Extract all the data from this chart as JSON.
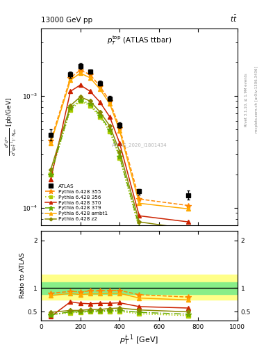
{
  "title_top": "13000 GeV pp",
  "title_right": "tt",
  "plot_title": "$p_T^{\\mathrm{top}}$ (ATLAS ttbar)",
  "atlas_label": "ATLAS_2020_I1801434",
  "right_label1": "Rivet 3.1.10, ≥ 1.9M events",
  "right_label2": "mcplots.cern.ch [arXiv:1306.3436]",
  "xlabel": "$p_T^{t,1}$ [GeV]",
  "ylabel_line1": "d",
  "ratio_ylabel": "Ratio to ATLAS",
  "xpts": [
    50,
    150,
    200,
    250,
    300,
    350,
    400,
    500,
    750
  ],
  "atlas_y": [
    0.00045,
    0.00155,
    0.00185,
    0.00165,
    0.0013,
    0.00095,
    0.00055,
    0.00014,
    0.00013
  ],
  "atlas_yerr": [
    5e-05,
    0.0001,
    0.0001,
    8e-05,
    7e-05,
    5e-05,
    3e-05,
    8e-06,
    1.2e-05
  ],
  "series": [
    {
      "label": "Pythia 6.428 355",
      "color": "#ff8800",
      "linestyle": "--",
      "marker": "*",
      "markersize": 6,
      "y": [
        0.0004,
        0.00145,
        0.0017,
        0.00155,
        0.00122,
        0.0009,
        0.00052,
        0.00012,
        0.000105
      ],
      "ratio": [
        0.89,
        0.93,
        0.92,
        0.94,
        0.94,
        0.95,
        0.95,
        0.86,
        0.81
      ]
    },
    {
      "label": "Pythia 6.428 356",
      "color": "#aacc00",
      "linestyle": ":",
      "marker": "s",
      "markersize": 4,
      "y": [
        0.0002,
        0.00075,
        0.0009,
        0.00082,
        0.00065,
        0.00048,
        0.00028,
        6.5e-05,
        5.5e-05
      ],
      "ratio": [
        0.44,
        0.48,
        0.49,
        0.5,
        0.5,
        0.51,
        0.51,
        0.46,
        0.42
      ]
    },
    {
      "label": "Pythia 6.428 370",
      "color": "#cc2200",
      "linestyle": "-",
      "marker": "^",
      "markersize": 4,
      "y": [
        0.00018,
        0.0011,
        0.00125,
        0.0011,
        0.00088,
        0.00065,
        0.00038,
        8.5e-05,
        7.5e-05
      ],
      "ratio": [
        0.4,
        0.71,
        0.68,
        0.67,
        0.68,
        0.68,
        0.69,
        0.61,
        0.58
      ]
    },
    {
      "label": "Pythia 6.428 379",
      "color": "#66aa00",
      "linestyle": "-.",
      "marker": "*",
      "markersize": 6,
      "y": [
        0.0002,
        0.00078,
        0.00092,
        0.00085,
        0.00067,
        0.0005,
        0.00029,
        6.8e-05,
        5.8e-05
      ],
      "ratio": [
        0.44,
        0.5,
        0.5,
        0.52,
        0.52,
        0.53,
        0.53,
        0.49,
        0.45
      ]
    },
    {
      "label": "Pythia 6.428 ambt1",
      "color": "#ffaa00",
      "linestyle": "-",
      "marker": "^",
      "markersize": 4,
      "y": [
        0.00038,
        0.00138,
        0.0016,
        0.00145,
        0.00115,
        0.00085,
        0.00049,
        0.00011,
        9.8e-05
      ],
      "ratio": [
        0.84,
        0.89,
        0.86,
        0.88,
        0.88,
        0.89,
        0.89,
        0.79,
        0.75
      ]
    },
    {
      "label": "Pythia 6.428 z2",
      "color": "#888800",
      "linestyle": "-",
      "marker": "D",
      "markersize": 3,
      "y": [
        0.00022,
        0.00082,
        0.00098,
        0.0009,
        0.00072,
        0.00054,
        0.00032,
        7.5e-05,
        6.5e-05
      ],
      "ratio": [
        0.49,
        0.53,
        0.53,
        0.55,
        0.55,
        0.57,
        0.58,
        0.54,
        0.5
      ]
    }
  ],
  "uncertainty_band_green_lo": 0.87,
  "uncertainty_band_green_hi": 1.12,
  "uncertainty_band_yellow_lo": 0.75,
  "uncertainty_band_yellow_hi": 1.28,
  "ylim_main": [
    7e-05,
    0.004
  ],
  "ylim_ratio": [
    0.32,
    2.2
  ],
  "xlim": [
    0,
    1000
  ],
  "yticks_ratio": [
    0.5,
    1.0,
    2.0
  ]
}
